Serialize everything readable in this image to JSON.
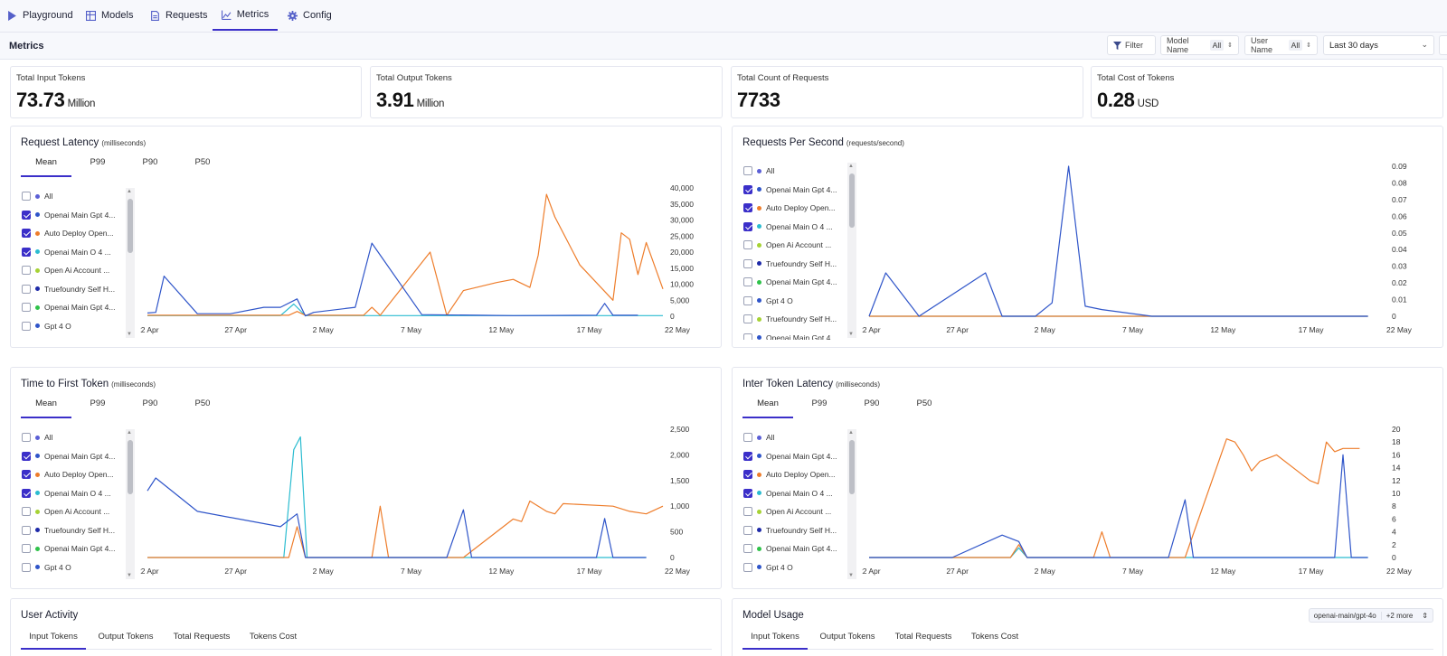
{
  "nav": {
    "items": [
      {
        "label": "Playground",
        "icon": "play-icon"
      },
      {
        "label": "Models",
        "icon": "table-icon"
      },
      {
        "label": "Requests",
        "icon": "document-icon"
      },
      {
        "label": "Metrics",
        "icon": "line-chart-icon"
      },
      {
        "label": "Config",
        "icon": "gear-icon"
      }
    ],
    "active": "Metrics"
  },
  "subbar": {
    "title": "Metrics",
    "filter_label": "Filter",
    "model_name_label": "Model Name",
    "model_name_value": "All",
    "user_name_label": "User Name",
    "user_name_value": "All",
    "date_range": "Last 30 days"
  },
  "stats": [
    {
      "label": "Total Input Tokens",
      "value": "73.73",
      "unit": "Million"
    },
    {
      "label": "Total Output Tokens",
      "value": "3.91",
      "unit": "Million"
    },
    {
      "label": "Total Count of Requests",
      "value": "7733",
      "unit": ""
    },
    {
      "label": "Total Cost of Tokens",
      "value": "0.28",
      "unit": "USD"
    }
  ],
  "tabs_latency": [
    "Mean",
    "P99",
    "P90",
    "P50"
  ],
  "legend_items": [
    {
      "label": "All",
      "checked": false,
      "color": "#5b5fd6"
    },
    {
      "label": "Openai Main Gpt 4...",
      "checked": true,
      "color": "#2f55c9"
    },
    {
      "label": "Auto Deploy Open...",
      "checked": true,
      "color": "#ee7d2b"
    },
    {
      "label": "Openai Main O 4 ...",
      "checked": true,
      "color": "#2bbcd0"
    },
    {
      "label": "Open Ai Account ...",
      "checked": false,
      "color": "#a6d234"
    },
    {
      "label": "Truefoundry Self H...",
      "checked": false,
      "color": "#1e2aa8"
    },
    {
      "label": "Openai Main Gpt 4...",
      "checked": false,
      "color": "#2fc24a"
    },
    {
      "label": "Gpt 4 O",
      "checked": false,
      "color": "#2f55c9"
    },
    {
      "label": "Truefoundry Self H...",
      "checked": false,
      "color": "#a6d234"
    },
    {
      "label": "Openai Main Gpt 4...",
      "checked": false,
      "color": "#2f55c9"
    }
  ],
  "series_colors": {
    "gpt4": "#2f55c9",
    "auto": "#ee7d2b",
    "o4": "#2bbcd0"
  },
  "x_ticks": [
    "22 Apr",
    "27 Apr",
    "2 May",
    "7 May",
    "12 May",
    "17 May",
    "22 May"
  ],
  "charts": {
    "latency": {
      "title": "Request Latency",
      "unit": "(milliseconds)",
      "y_ticks": [
        "40,000",
        "35,000",
        "30,000",
        "25,000",
        "20,000",
        "15,000",
        "10,000",
        "5,000",
        "0"
      ]
    },
    "rps": {
      "title": "Requests Per Second",
      "unit": "(requests/second)",
      "y_ticks": [
        "0.09",
        "0.08",
        "0.07",
        "0.06",
        "0.05",
        "0.04",
        "0.03",
        "0.02",
        "0.01",
        "0"
      ]
    },
    "ttft": {
      "title": "Time to First Token",
      "unit": "(milliseconds)",
      "y_ticks": [
        "2,500",
        "2,000",
        "1,500",
        "1,000",
        "500",
        "0"
      ]
    },
    "itl": {
      "title": "Inter Token Latency",
      "unit": "(milliseconds)",
      "y_ticks": [
        "20",
        "18",
        "16",
        "14",
        "12",
        "10",
        "8",
        "6",
        "4",
        "2",
        "0"
      ]
    }
  },
  "chart_data": [
    {
      "type": "line",
      "title": "Request Latency",
      "ylabel": "milliseconds",
      "ylim": [
        0,
        40000
      ],
      "x_range": [
        "22 Apr",
        "22 May"
      ],
      "series": [
        {
          "name": "Openai Main Gpt 4...",
          "points": [
            [
              0,
              1000
            ],
            [
              0.5,
              1200
            ],
            [
              1,
              12500
            ],
            [
              3,
              800
            ],
            [
              5,
              800
            ],
            [
              7,
              2800
            ],
            [
              8,
              2800
            ],
            [
              9,
              5400
            ],
            [
              9.5,
              100
            ],
            [
              10,
              1200
            ],
            [
              12.5,
              2800
            ],
            [
              13.5,
              22800
            ],
            [
              16.5,
              500
            ],
            [
              20,
              300
            ],
            [
              22,
              200
            ],
            [
              27,
              300
            ],
            [
              27.5,
              4000
            ],
            [
              28,
              300
            ],
            [
              29.5,
              300
            ]
          ]
        },
        {
          "name": "Auto Deploy Open...",
          "points": [
            [
              0,
              300
            ],
            [
              8.5,
              300
            ],
            [
              9,
              1500
            ],
            [
              9.5,
              300
            ],
            [
              13,
              300
            ],
            [
              13.5,
              2800
            ],
            [
              14,
              300
            ],
            [
              17,
              20000
            ],
            [
              18,
              300
            ],
            [
              19,
              8000
            ],
            [
              21,
              10500
            ],
            [
              22,
              11500
            ],
            [
              23,
              9000
            ],
            [
              23.5,
              19000
            ],
            [
              24,
              38000
            ],
            [
              24.5,
              31000
            ],
            [
              26,
              16000
            ],
            [
              28,
              5000
            ],
            [
              28.5,
              26000
            ],
            [
              29,
              24000
            ],
            [
              29.5,
              13000
            ],
            [
              30,
              23000
            ],
            [
              31,
              8500
            ]
          ]
        },
        {
          "name": "Openai Main O 4 ...",
          "points": [
            [
              0,
              200
            ],
            [
              8,
              200
            ],
            [
              8.8,
              3800
            ],
            [
              9.5,
              200
            ],
            [
              31,
              200
            ]
          ]
        }
      ]
    },
    {
      "type": "line",
      "title": "Requests Per Second",
      "ylabel": "requests/second",
      "ylim": [
        0,
        0.09
      ],
      "x_range": [
        "22 Apr",
        "22 May"
      ],
      "series": [
        {
          "name": "Openai Main Gpt 4...",
          "points": [
            [
              0,
              0
            ],
            [
              1,
              0.026
            ],
            [
              3,
              0
            ],
            [
              7,
              0.026
            ],
            [
              8,
              0
            ],
            [
              10,
              0
            ],
            [
              11,
              0.008
            ],
            [
              12,
              0.09
            ],
            [
              13,
              0.006
            ],
            [
              14,
              0.004
            ],
            [
              17,
              0
            ],
            [
              30,
              0
            ]
          ]
        },
        {
          "name": "Auto Deploy Open...",
          "points": [
            [
              0,
              0
            ],
            [
              30,
              0
            ]
          ]
        },
        {
          "name": "Openai Main O 4 ...",
          "points": [
            [
              0,
              0
            ],
            [
              30,
              0
            ]
          ]
        }
      ]
    },
    {
      "type": "line",
      "title": "Time to First Token",
      "ylabel": "milliseconds",
      "ylim": [
        0,
        2500
      ],
      "x_range": [
        "22 Apr",
        "22 May"
      ],
      "series": [
        {
          "name": "Openai Main Gpt 4...",
          "points": [
            [
              0,
              1300
            ],
            [
              0.5,
              1550
            ],
            [
              3,
              900
            ],
            [
              8,
              600
            ],
            [
              9,
              850
            ],
            [
              9.5,
              0
            ],
            [
              18,
              0
            ],
            [
              19,
              930
            ],
            [
              19.5,
              0
            ],
            [
              27,
              0
            ],
            [
              27.5,
              760
            ],
            [
              28,
              0
            ],
            [
              30,
              0
            ]
          ]
        },
        {
          "name": "Auto Deploy Open...",
          "points": [
            [
              0,
              0
            ],
            [
              8.5,
              0
            ],
            [
              9,
              600
            ],
            [
              9.5,
              0
            ],
            [
              13.5,
              0
            ],
            [
              14,
              1000
            ],
            [
              14.5,
              0
            ],
            [
              19,
              0
            ],
            [
              21,
              500
            ],
            [
              22,
              750
            ],
            [
              22.5,
              700
            ],
            [
              23,
              1100
            ],
            [
              24,
              900
            ],
            [
              24.5,
              850
            ],
            [
              25,
              1050
            ],
            [
              28,
              1000
            ],
            [
              29,
              900
            ],
            [
              30,
              850
            ],
            [
              31,
              1000
            ]
          ]
        },
        {
          "name": "Openai Main O 4 ...",
          "points": [
            [
              0,
              0
            ],
            [
              8.2,
              0
            ],
            [
              8.8,
              2100
            ],
            [
              9.2,
              2350
            ],
            [
              9.6,
              0
            ],
            [
              30,
              0
            ]
          ]
        }
      ]
    },
    {
      "type": "line",
      "title": "Inter Token Latency",
      "ylabel": "milliseconds",
      "ylim": [
        0,
        20
      ],
      "x_range": [
        "22 Apr",
        "22 May"
      ],
      "series": [
        {
          "name": "Openai Main Gpt 4...",
          "points": [
            [
              0,
              0
            ],
            [
              5,
              0
            ],
            [
              8,
              3.5
            ],
            [
              9,
              2.5
            ],
            [
              9.5,
              0
            ],
            [
              18,
              0
            ],
            [
              19,
              9
            ],
            [
              19.5,
              0
            ],
            [
              28,
              0
            ],
            [
              28.5,
              16
            ],
            [
              29,
              0
            ],
            [
              30,
              0
            ]
          ]
        },
        {
          "name": "Auto Deploy Open...",
          "points": [
            [
              0,
              0
            ],
            [
              8.5,
              0
            ],
            [
              9,
              2
            ],
            [
              9.5,
              0
            ],
            [
              13.5,
              0
            ],
            [
              14,
              4
            ],
            [
              14.5,
              0
            ],
            [
              19,
              0
            ],
            [
              21.5,
              18.5
            ],
            [
              22,
              18
            ],
            [
              22.5,
              16
            ],
            [
              23,
              13.5
            ],
            [
              23.5,
              15
            ],
            [
              24.5,
              16
            ],
            [
              26.5,
              12
            ],
            [
              27,
              11.5
            ],
            [
              27.5,
              18
            ],
            [
              28,
              16.5
            ],
            [
              28.5,
              17
            ],
            [
              29.5,
              17
            ]
          ]
        },
        {
          "name": "Openai Main O 4 ...",
          "points": [
            [
              0,
              0
            ],
            [
              8.5,
              0
            ],
            [
              9,
              1.5
            ],
            [
              9.5,
              0
            ],
            [
              30,
              0
            ]
          ]
        }
      ]
    }
  ],
  "user_activity": {
    "title": "User Activity",
    "tabs": [
      "Input Tokens",
      "Output Tokens",
      "Total Requests",
      "Tokens Cost"
    ]
  },
  "model_usage": {
    "title": "Model Usage",
    "tabs": [
      "Input Tokens",
      "Output Tokens",
      "Total Requests",
      "Tokens Cost"
    ],
    "selected_model": "openai-main/gpt-4o",
    "more": "+2 more"
  }
}
